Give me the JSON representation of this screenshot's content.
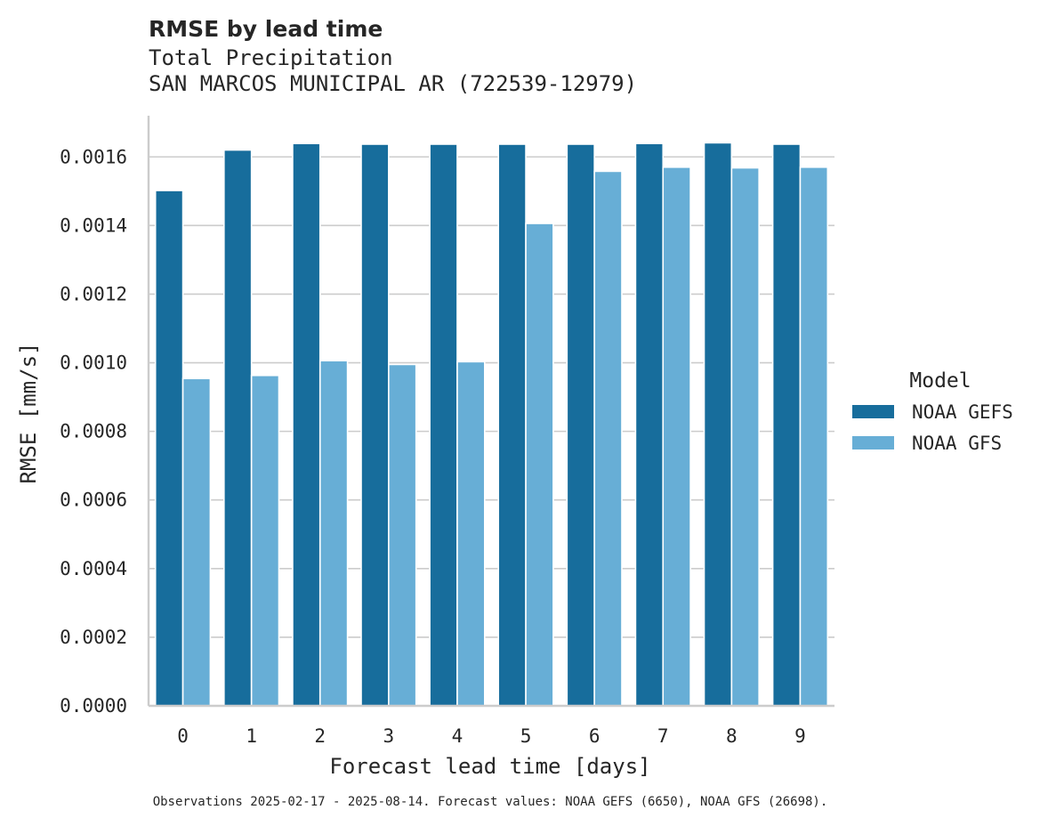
{
  "chart_data": {
    "type": "bar",
    "title": "RMSE by lead time",
    "subtitle_lines": [
      "Total Precipitation",
      "SAN MARCOS MUNICIPAL AR (722539-12979)"
    ],
    "xlabel": "Forecast lead time [days]",
    "ylabel": "RMSE [mm/s]",
    "categories": [
      "0",
      "1",
      "2",
      "3",
      "4",
      "5",
      "6",
      "7",
      "8",
      "9"
    ],
    "ylim": [
      0,
      0.00172
    ],
    "yticks": [
      0.0,
      0.0002,
      0.0004,
      0.0006,
      0.0008,
      0.001,
      0.0012,
      0.0014,
      0.0016
    ],
    "ytick_labels": [
      "0.0000",
      "0.0002",
      "0.0004",
      "0.0006",
      "0.0008",
      "0.0010",
      "0.0012",
      "0.0014",
      "0.0016"
    ],
    "grid": "y",
    "legend_title": "Model",
    "legend_position": "right",
    "series": [
      {
        "name": "NOAA GEFS",
        "color": "#176d9c",
        "values": [
          0.001502,
          0.00162,
          0.001639,
          0.001637,
          0.001637,
          0.001637,
          0.001637,
          0.001639,
          0.001641,
          0.001637
        ]
      },
      {
        "name": "NOAA GFS",
        "color": "#67aed6",
        "values": [
          0.000954,
          0.000963,
          0.001006,
          0.000995,
          0.001003,
          0.001406,
          0.001558,
          0.00157,
          0.001568,
          0.00157
        ]
      }
    ],
    "footnote": "Observations 2025-02-17 - 2025-08-14. Forecast values: NOAA GEFS (6650), NOAA GFS (26698)."
  }
}
